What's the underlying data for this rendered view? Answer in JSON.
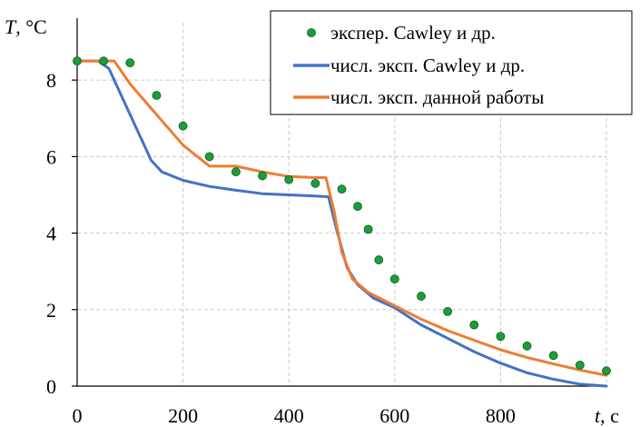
{
  "chart_data": {
    "type": "line",
    "xlabel": "t, c",
    "xlabel_var": "t",
    "xlabel_unit": ", c",
    "ylabel": "T, °C",
    "ylabel_var": "T",
    "ylabel_unit": ", °C",
    "xlim": [
      0,
      1000
    ],
    "ylim": [
      0,
      9.5
    ],
    "x_ticks": [
      0,
      200,
      400,
      600,
      800
    ],
    "y_ticks": [
      0,
      2,
      4,
      6,
      8
    ],
    "grid": true,
    "legend_position": "top-right",
    "series": [
      {
        "name": "экспер. Cawley и др.",
        "kind": "scatter",
        "color": "#1a9e3a",
        "x": [
          0,
          50,
          100,
          150,
          200,
          250,
          300,
          350,
          400,
          450,
          500,
          530,
          550,
          570,
          600,
          650,
          700,
          750,
          800,
          850,
          900,
          950,
          1000
        ],
        "y": [
          8.5,
          8.5,
          8.45,
          7.6,
          6.8,
          6.0,
          5.6,
          5.5,
          5.4,
          5.3,
          5.15,
          4.7,
          4.1,
          3.3,
          2.8,
          2.35,
          1.95,
          1.6,
          1.3,
          1.05,
          0.8,
          0.55,
          0.4
        ]
      },
      {
        "name": "числ. эксп. Cawley и др.",
        "kind": "line",
        "color": "#4472c4",
        "x": [
          0,
          40,
          60,
          100,
          140,
          160,
          200,
          250,
          300,
          350,
          400,
          450,
          475,
          490,
          510,
          530,
          560,
          600,
          650,
          700,
          750,
          800,
          850,
          900,
          950,
          1000
        ],
        "y": [
          8.5,
          8.5,
          8.3,
          7.1,
          5.9,
          5.6,
          5.38,
          5.22,
          5.12,
          5.03,
          5.0,
          4.97,
          4.95,
          4.1,
          3.1,
          2.65,
          2.3,
          2.05,
          1.6,
          1.25,
          0.9,
          0.6,
          0.35,
          0.18,
          0.05,
          0.0
        ]
      },
      {
        "name": "числ. эксп. данной работы",
        "kind": "line",
        "color": "#ed7d31",
        "x": [
          0,
          70,
          100,
          150,
          200,
          250,
          300,
          350,
          400,
          450,
          470,
          485,
          500,
          520,
          550,
          600,
          650,
          700,
          750,
          800,
          850,
          900,
          950,
          1000
        ],
        "y": [
          8.5,
          8.5,
          7.9,
          7.1,
          6.3,
          5.75,
          5.75,
          5.6,
          5.48,
          5.45,
          5.45,
          4.6,
          3.5,
          2.8,
          2.45,
          2.1,
          1.75,
          1.45,
          1.2,
          0.95,
          0.75,
          0.58,
          0.42,
          0.28
        ]
      }
    ]
  }
}
